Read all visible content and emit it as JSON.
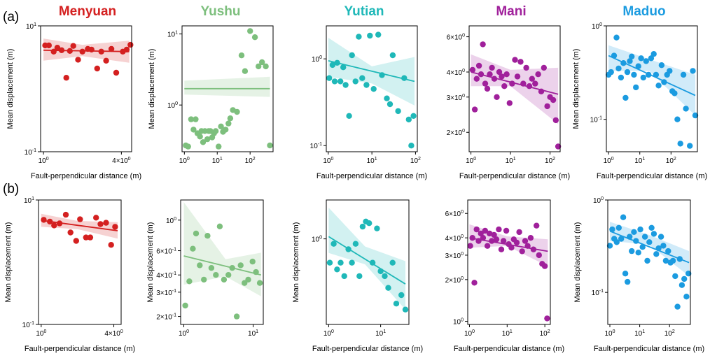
{
  "figure": {
    "row_labels": [
      "(a)",
      "(b)"
    ],
    "site_titles": [
      "Menyuan",
      "Yushu",
      "Yutian",
      "Mani",
      "Maduo"
    ],
    "site_colors": [
      "#d42020",
      "#7dbf7d",
      "#1fb8b8",
      "#a0209b",
      "#1b9be0"
    ]
  },
  "chart_data": [
    {
      "type": "scatter",
      "row": 0,
      "col": 0,
      "title": "Menyuan",
      "color": "#d42020",
      "xlabel": "Fault-perpendicular distance (m)",
      "ylabel": "Mean displacement (m)",
      "xscale": "log",
      "yscale": "log",
      "xlim": [
        0.95,
        4.8
      ],
      "ylim": [
        0.1,
        10
      ],
      "xticks": [
        {
          "value": 1,
          "label": "10^0"
        },
        {
          "value": 4,
          "label": "4×10^0"
        }
      ],
      "yticks": [
        {
          "value": 0.1,
          "label": "10^-1"
        },
        {
          "value": 10,
          "label": "10^1"
        }
      ],
      "x": [
        1.03,
        1.1,
        1.2,
        1.28,
        1.38,
        1.5,
        1.6,
        1.7,
        1.85,
        2.0,
        2.2,
        2.35,
        2.6,
        2.8,
        3.05,
        3.35,
        3.65,
        4.1,
        4.4,
        4.7
      ],
      "y": [
        4.9,
        4.9,
        3.9,
        4.5,
        4.1,
        1.5,
        4.0,
        4.8,
        2.9,
        3.9,
        4.3,
        4.2,
        2.1,
        3.9,
        2.8,
        4.3,
        1.8,
        3.9,
        4.2,
        5.0
      ],
      "fit": {
        "x": [
          1.0,
          4.6
        ],
        "y": [
          4.1,
          3.9
        ]
      },
      "band": {
        "x": [
          1.0,
          2.0,
          4.6
        ],
        "lower": [
          2.8,
          3.3,
          2.6
        ],
        "upper": [
          6.3,
          5.0,
          5.8
        ]
      }
    },
    {
      "type": "scatter",
      "row": 0,
      "col": 1,
      "title": "Yushu",
      "color": "#7dbf7d",
      "xlabel": "",
      "ylabel": "Mean displacement (m)",
      "xscale": "log",
      "yscale": "log",
      "xlim": [
        0.85,
        500
      ],
      "ylim": [
        0.22,
        13
      ],
      "xticks": [
        {
          "value": 1,
          "label": "10^0"
        },
        {
          "value": 10,
          "label": "10^1"
        },
        {
          "value": 100,
          "label": "10^2"
        }
      ],
      "yticks": [
        {
          "value": 1,
          "label": "10^0"
        },
        {
          "value": 10,
          "label": "10^1"
        }
      ],
      "x": [
        1.1,
        1.3,
        1.6,
        1.9,
        2.2,
        2.5,
        3.0,
        3.3,
        3.7,
        4.2,
        5.0,
        5.5,
        6.2,
        7.0,
        8.0,
        9.0,
        11,
        13,
        15,
        18,
        22,
        25,
        30,
        40,
        55,
        70,
        100,
        140,
        180,
        230,
        300,
        400
      ],
      "y": [
        0.27,
        0.26,
        0.63,
        0.45,
        0.63,
        0.4,
        0.36,
        0.43,
        0.3,
        0.43,
        0.33,
        0.43,
        0.43,
        0.35,
        0.4,
        0.43,
        0.26,
        0.5,
        0.42,
        0.45,
        0.55,
        0.65,
        0.85,
        0.8,
        5.0,
        3.0,
        11,
        9,
        3.5,
        4.0,
        3.5,
        0.27
      ],
      "fit": {
        "x": [
          1.0,
          400
        ],
        "y": [
          1.7,
          1.7
        ]
      },
      "band": {
        "x": [
          1.0,
          400
        ],
        "lower": [
          1.4,
          1.3
        ],
        "upper": [
          2.2,
          2.5
        ]
      }
    },
    {
      "type": "scatter",
      "row": 0,
      "col": 2,
      "title": "Yutian",
      "color": "#1fb8b8",
      "xlabel": "Fault-perpendicular distance (m)",
      "ylabel": "",
      "xscale": "log",
      "yscale": "log",
      "xlim": [
        0.9,
        110
      ],
      "ylim": [
        0.085,
        2.4
      ],
      "xticks": [
        {
          "value": 1,
          "label": "10^0"
        },
        {
          "value": 10,
          "label": "10^1"
        },
        {
          "value": 100,
          "label": "10^2"
        }
      ],
      "yticks": [
        {
          "value": 0.1,
          "label": "10^-1"
        },
        {
          "value": 1,
          "label": "10^0"
        }
      ],
      "x": [
        1.05,
        1.25,
        1.4,
        1.6,
        1.9,
        2.2,
        2.5,
        3.0,
        3.5,
        4.2,
        5.0,
        6.0,
        7.5,
        9.0,
        11,
        14,
        17,
        22,
        26,
        30,
        40,
        55,
        70,
        80,
        90
      ],
      "y": [
        0.6,
        0.85,
        0.55,
        0.9,
        0.55,
        0.8,
        0.5,
        0.22,
        1.1,
        0.55,
        1.8,
        0.6,
        0.5,
        1.85,
        0.45,
        1.9,
        0.65,
        0.35,
        0.3,
        1.1,
        0.25,
        0.6,
        0.2,
        0.1,
        0.22
      ],
      "fit": {
        "x": [
          1.0,
          95
        ],
        "y": [
          0.95,
          0.55
        ]
      },
      "band": {
        "x": [
          1.0,
          10,
          95
        ],
        "lower": [
          0.62,
          0.52,
          0.29
        ],
        "upper": [
          1.75,
          0.82,
          1.05
        ]
      }
    },
    {
      "type": "scatter",
      "row": 0,
      "col": 3,
      "title": "Mani",
      "color": "#a0209b",
      "xlabel": "Fault-perpendicular distance (m)",
      "ylabel": "",
      "xscale": "log",
      "yscale": "log",
      "xlim": [
        0.9,
        180
      ],
      "ylim": [
        1.6,
        6.8
      ],
      "xticks": [
        {
          "value": 1,
          "label": "10^0"
        },
        {
          "value": 10,
          "label": "10^1"
        },
        {
          "value": 100,
          "label": "10^2"
        }
      ],
      "yticks": [
        {
          "value": 2,
          "label": "2×10^0"
        },
        {
          "value": 3,
          "label": "3×10^0"
        },
        {
          "value": 4,
          "label": "4×10^0"
        },
        {
          "value": 6,
          "label": "6×10^0"
        }
      ],
      "x": [
        1.1,
        1.25,
        1.4,
        1.6,
        1.8,
        2.0,
        2.3,
        2.6,
        3.0,
        3.4,
        3.9,
        4.5,
        5.2,
        6.0,
        7.0,
        8.0,
        9.5,
        11,
        13,
        15,
        18,
        21,
        25,
        30,
        35,
        42,
        50,
        60,
        70,
        85,
        100,
        120,
        140,
        160
      ],
      "y": [
        4.1,
        2.6,
        3.7,
        4.3,
        3.9,
        5.5,
        3.5,
        3.3,
        3.9,
        4.2,
        3.7,
        3.0,
        4.0,
        3.8,
        3.4,
        3.9,
        2.8,
        3.5,
        4.6,
        3.8,
        4.5,
        3.5,
        4.2,
        3.4,
        3.7,
        3.5,
        3.9,
        3.2,
        4.2,
        2.7,
        3.0,
        2.9,
        2.3,
        1.7
      ],
      "fit": {
        "x": [
          1.0,
          160
        ],
        "y": [
          4.0,
          3.1
        ]
      },
      "band": {
        "x": [
          1.0,
          10,
          160
        ],
        "lower": [
          3.4,
          3.4,
          2.2
        ],
        "upper": [
          4.9,
          4.1,
          4.2
        ]
      }
    },
    {
      "type": "scatter",
      "row": 0,
      "col": 4,
      "title": "Maduo",
      "color": "#1b9be0",
      "xlabel": "Fault-perpendicular distance (m)",
      "ylabel": "Mean displacement (m)",
      "xscale": "log",
      "yscale": "log",
      "xlim": [
        0.85,
        700
      ],
      "ylim": [
        0.045,
        1.0
      ],
      "xticks": [
        {
          "value": 1,
          "label": "10^0"
        },
        {
          "value": 10,
          "label": "10^1"
        },
        {
          "value": 100,
          "label": "10^2"
        }
      ],
      "yticks": [
        {
          "value": 0.1,
          "label": "10^-1"
        },
        {
          "value": 1,
          "label": "10^0"
        }
      ],
      "x": [
        1.0,
        1.2,
        1.5,
        1.8,
        2.1,
        2.5,
        3.0,
        3.5,
        4.0,
        4.8,
        5.5,
        6.5,
        7.5,
        9.0,
        11,
        13,
        16,
        19,
        23,
        28,
        33,
        40,
        50,
        60,
        75,
        90,
        110,
        130,
        160,
        200,
        250,
        300,
        400,
        500,
        600
      ],
      "y": [
        0.3,
        0.32,
        0.48,
        0.75,
        0.35,
        0.28,
        0.4,
        0.17,
        0.32,
        0.42,
        0.47,
        0.3,
        0.22,
        0.37,
        0.45,
        0.28,
        0.42,
        0.3,
        0.45,
        0.5,
        0.3,
        0.23,
        0.38,
        0.25,
        0.3,
        0.33,
        0.2,
        0.19,
        0.1,
        0.055,
        0.3,
        0.13,
        0.052,
        0.33,
        0.11
      ],
      "fit": {
        "x": [
          1.0,
          600
        ],
        "y": [
          0.48,
          0.18
        ]
      },
      "band": {
        "x": [
          1.0,
          20,
          600
        ],
        "lower": [
          0.33,
          0.33,
          0.11
        ],
        "upper": [
          0.62,
          0.44,
          0.3
        ]
      }
    },
    {
      "type": "scatter",
      "row": 1,
      "col": 0,
      "title": "Menyuan",
      "color": "#d42020",
      "xlabel": "Fault-perpendicular distance (m)",
      "ylabel": "Mean displacement (m)",
      "xscale": "log",
      "yscale": "log",
      "xlim": [
        0.95,
        4.6
      ],
      "ylim": [
        0.1,
        10
      ],
      "xticks": [
        {
          "value": 1,
          "label": "10^0"
        },
        {
          "value": 4,
          "label": "4×10^0"
        }
      ],
      "yticks": [
        {
          "value": 0.1,
          "label": "10^-1"
        },
        {
          "value": 10,
          "label": "10^1"
        }
      ],
      "x": [
        1.05,
        1.18,
        1.28,
        1.42,
        1.6,
        1.75,
        1.95,
        2.1,
        2.35,
        2.55,
        2.85,
        3.1,
        3.45,
        3.8,
        4.1
      ],
      "y": [
        4.8,
        4.5,
        3.9,
        4.2,
        5.8,
        3.0,
        2.2,
        4.9,
        2.5,
        2.5,
        5.2,
        4.1,
        4.3,
        1.9,
        3.7
      ],
      "fit": {
        "x": [
          1.0,
          4.3
        ],
        "y": [
          4.7,
          3.2
        ]
      },
      "band": {
        "x": [
          1.0,
          2.0,
          4.3
        ],
        "lower": [
          3.7,
          3.4,
          2.4
        ],
        "upper": [
          6.0,
          4.6,
          4.4
        ]
      }
    },
    {
      "type": "scatter",
      "row": 1,
      "col": 1,
      "title": "Yushu",
      "color": "#7dbf7d",
      "xlabel": "",
      "ylabel": "Mean displacement (m)",
      "xscale": "log",
      "yscale": "log",
      "xlim": [
        0.9,
        14
      ],
      "ylim": [
        0.175,
        1.4
      ],
      "xticks": [
        {
          "value": 1,
          "label": "10^0"
        },
        {
          "value": 10,
          "label": "10^1"
        }
      ],
      "yticks": [
        {
          "value": 0.2,
          "label": "2×10^-1"
        },
        {
          "value": 0.3,
          "label": "3×10^-1"
        },
        {
          "value": 0.4,
          "label": "4×10^-1"
        },
        {
          "value": 0.6,
          "label": "6×10^-1"
        },
        {
          "value": 1,
          "label": "10^0"
        }
      ],
      "x": [
        1.05,
        1.2,
        1.35,
        1.5,
        1.7,
        1.95,
        2.2,
        2.5,
        2.9,
        3.3,
        3.8,
        4.4,
        5.0,
        5.8,
        6.6,
        7.5,
        8.5,
        9.8,
        11,
        12.5
      ],
      "y": [
        0.24,
        0.36,
        0.62,
        0.8,
        0.47,
        0.37,
        0.77,
        0.45,
        0.4,
        0.9,
        0.37,
        0.4,
        0.45,
        0.2,
        0.47,
        0.35,
        0.37,
        0.5,
        0.42,
        0.35
      ],
      "fit": {
        "x": [
          1.0,
          13
        ],
        "y": [
          0.55,
          0.4
        ]
      },
      "band": {
        "x": [
          1.0,
          4.0,
          13
        ],
        "lower": [
          0.34,
          0.39,
          0.28
        ],
        "upper": [
          1.35,
          0.52,
          0.58
        ]
      }
    },
    {
      "type": "scatter",
      "row": 1,
      "col": 2,
      "title": "Yutian",
      "color": "#1fb8b8",
      "xlabel": "Fault-perpendicular distance (m)",
      "ylabel": "Mean displacement (m)",
      "xscale": "log",
      "yscale": "log",
      "xlim": [
        0.9,
        35
      ],
      "ylim": [
        0.16,
        2.3
      ],
      "xticks": [
        {
          "value": 1,
          "label": "10^0"
        },
        {
          "value": 10,
          "label": "10^1"
        }
      ],
      "yticks": [
        {
          "value": 1,
          "label": "10^0"
        }
      ],
      "x": [
        1.05,
        1.25,
        1.45,
        1.7,
        2.0,
        2.4,
        2.8,
        3.3,
        3.9,
        4.5,
        5.2,
        6.0,
        7.0,
        8.5,
        10,
        12,
        14,
        17,
        20,
        25,
        30
      ],
      "y": [
        0.6,
        0.9,
        0.52,
        0.6,
        0.45,
        0.8,
        0.6,
        0.9,
        0.45,
        1.3,
        1.45,
        1.4,
        0.6,
        1.25,
        0.5,
        0.45,
        0.35,
        0.6,
        0.25,
        0.3,
        0.22
      ],
      "fit": {
        "x": [
          1.0,
          30
        ],
        "y": [
          1.05,
          0.38
        ]
      },
      "band": {
        "x": [
          1.0,
          5.0,
          30
        ],
        "lower": [
          0.74,
          0.58,
          0.22
        ],
        "upper": [
          1.95,
          0.85,
          0.62
        ]
      }
    },
    {
      "type": "scatter",
      "row": 1,
      "col": 3,
      "title": "Mani",
      "color": "#a0209b",
      "xlabel": "Fault-perpendicular distance (m)",
      "ylabel": "",
      "xscale": "log",
      "yscale": "log",
      "xlim": [
        0.9,
        140
      ],
      "ylim": [
        0.95,
        7.5
      ],
      "xticks": [
        {
          "value": 1,
          "label": "10^0"
        },
        {
          "value": 10,
          "label": "10^1"
        },
        {
          "value": 100,
          "label": "10^2"
        }
      ],
      "yticks": [
        {
          "value": 1,
          "label": "10^0"
        },
        {
          "value": 2,
          "label": "2×10^0"
        },
        {
          "value": 3,
          "label": "3×10^0"
        },
        {
          "value": 4,
          "label": "4×10^0"
        },
        {
          "value": 6,
          "label": "6×10^0"
        }
      ],
      "x": [
        1.05,
        1.2,
        1.35,
        1.55,
        1.75,
        2.0,
        2.3,
        2.6,
        3.0,
        3.4,
        3.9,
        4.5,
        5.2,
        6.0,
        7.0,
        8.0,
        9.5,
        11,
        13,
        15,
        18,
        21,
        25,
        30,
        35,
        42,
        50,
        60,
        70,
        85,
        100,
        115
      ],
      "y": [
        3.5,
        4.0,
        1.9,
        4.6,
        3.8,
        4.3,
        4.0,
        4.5,
        3.5,
        4.3,
        3.8,
        4.2,
        3.9,
        4.6,
        3.3,
        3.8,
        4.5,
        3.6,
        3.4,
        3.9,
        3.7,
        4.4,
        3.2,
        3.8,
        3.5,
        4.0,
        3.3,
        4.9,
        3.0,
        2.6,
        2.5,
        1.05
      ],
      "fit": {
        "x": [
          1.0,
          120
        ],
        "y": [
          4.0,
          3.2
        ]
      },
      "band": {
        "x": [
          1.0,
          10,
          120
        ],
        "lower": [
          3.4,
          3.5,
          2.5
        ],
        "upper": [
          5.0,
          4.1,
          3.9
        ]
      }
    },
    {
      "type": "scatter",
      "row": 1,
      "col": 4,
      "title": "Maduo",
      "color": "#1b9be0",
      "xlabel": "Fault-perpendicular distance (m)",
      "ylabel": "Mean displacement (m)",
      "xscale": "log",
      "yscale": "log",
      "xlim": [
        0.85,
        500
      ],
      "ylim": [
        0.045,
        1.0
      ],
      "xticks": [
        {
          "value": 1,
          "label": "10^0"
        },
        {
          "value": 10,
          "label": "10^1"
        },
        {
          "value": 100,
          "label": "10^2"
        }
      ],
      "yticks": [
        {
          "value": 0.1,
          "label": "10^-1"
        },
        {
          "value": 1,
          "label": "10^0"
        }
      ],
      "x": [
        1.0,
        1.2,
        1.4,
        1.7,
        2.0,
        2.4,
        2.8,
        3.3,
        3.9,
        4.6,
        5.4,
        6.4,
        7.5,
        9.0,
        10.5,
        12.5,
        15,
        18,
        21,
        25,
        30,
        36,
        43,
        52,
        62,
        75,
        90,
        108,
        130,
        155,
        185,
        220,
        260,
        310,
        370,
        430
      ],
      "y": [
        0.32,
        0.48,
        0.38,
        0.35,
        0.5,
        0.38,
        0.65,
        0.16,
        0.13,
        0.4,
        0.28,
        0.45,
        0.36,
        0.27,
        0.48,
        0.31,
        0.4,
        0.22,
        0.35,
        0.5,
        0.43,
        0.26,
        0.3,
        0.4,
        0.32,
        0.22,
        0.28,
        0.21,
        0.22,
        0.15,
        0.07,
        0.23,
        0.12,
        0.14,
        0.09,
        0.16
      ],
      "fit": {
        "x": [
          1.0,
          450
        ],
        "y": [
          0.46,
          0.21
        ]
      },
      "band": {
        "x": [
          1.0,
          20,
          450
        ],
        "lower": [
          0.36,
          0.33,
          0.15
        ],
        "upper": [
          0.58,
          0.42,
          0.28
        ]
      }
    }
  ]
}
